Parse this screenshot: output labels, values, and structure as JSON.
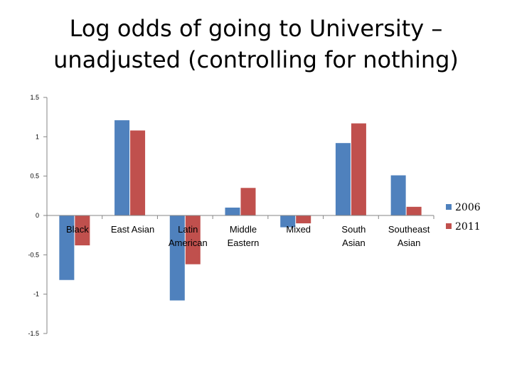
{
  "chart_data": {
    "type": "bar",
    "title": "Log odds of going to University – unadjusted (controlling for nothing)",
    "title_lines": [
      "Log odds of going to University –",
      "unadjusted (controlling for nothing)"
    ],
    "categories": [
      [
        "Black"
      ],
      [
        "East Asian"
      ],
      [
        "Latin",
        "American"
      ],
      [
        "Middle",
        "Eastern"
      ],
      [
        "Mixed"
      ],
      [
        "South",
        "Asian"
      ],
      [
        "Southeast",
        "Asian"
      ]
    ],
    "series": [
      {
        "name": "2006",
        "color": "#4F81BD",
        "values": [
          -0.82,
          1.21,
          -1.08,
          0.1,
          -0.15,
          0.92,
          0.51
        ]
      },
      {
        "name": "2011",
        "color": "#C0504D",
        "values": [
          -0.38,
          1.08,
          -0.62,
          0.35,
          -0.1,
          1.17,
          0.11
        ]
      }
    ],
    "ylim": [
      -1.5,
      1.5
    ],
    "yticks": [
      1.5,
      1,
      0.5,
      0,
      -0.5,
      -1,
      -1.5
    ],
    "ytick_labels": [
      "1.5",
      "1",
      "0.5",
      "0",
      "-0.5",
      "-1",
      "-1.5"
    ],
    "legend": "right",
    "grid": false,
    "xlabel": "",
    "ylabel": ""
  }
}
